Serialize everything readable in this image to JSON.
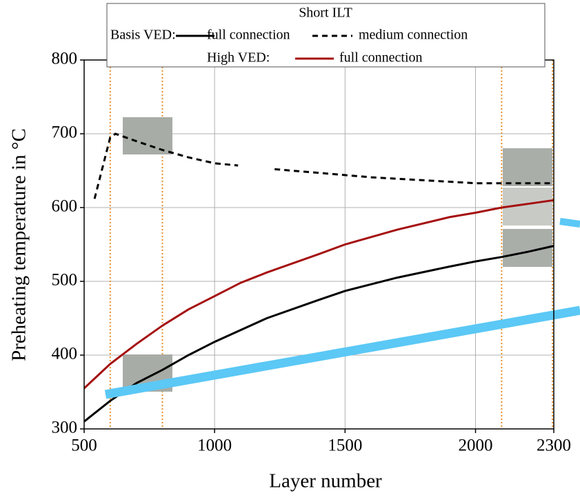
{
  "chart_data": {
    "type": "line",
    "x_label": "Layer number",
    "y_label": "Preheating temperature in °C",
    "legend_title": "Short ILT",
    "xlim": [
      500,
      2300
    ],
    "ylim": [
      300,
      800
    ],
    "xticks": [
      500,
      1000,
      1500,
      2000,
      2300
    ],
    "yticks": [
      300,
      400,
      500,
      600,
      700,
      800
    ],
    "grid": true,
    "vlines": [
      600,
      800,
      2100,
      2295
    ],
    "vline_color": "#e8902a",
    "series": [
      {
        "name": "full connection",
        "group": "Basis VED:",
        "color": "#000000",
        "dash": false,
        "x": [
          500,
          600,
          700,
          800,
          900,
          1000,
          1200,
          1400,
          1500,
          1700,
          1900,
          2000,
          2100,
          2200,
          2300
        ],
        "values": [
          310,
          338,
          362,
          380,
          400,
          418,
          450,
          475,
          487,
          505,
          520,
          527,
          533,
          540,
          548
        ]
      },
      {
        "name": "medium connection",
        "group": "Basis VED:",
        "color": "#000000",
        "dash": true,
        "x": [
          540,
          600,
          620,
          700,
          800,
          900,
          1000,
          1090,
          1160,
          1230,
          1400,
          1600,
          1800,
          2000,
          2300
        ],
        "values": [
          612,
          695,
          700,
          690,
          678,
          668,
          660,
          657,
          null,
          652,
          647,
          641,
          637,
          633,
          633
        ]
      },
      {
        "name": "full connection",
        "group": "High VED:",
        "color": "#a50f0f",
        "dash": false,
        "x": [
          500,
          600,
          700,
          800,
          900,
          1000,
          1100,
          1200,
          1400,
          1500,
          1700,
          1900,
          2000,
          2100,
          2200,
          2300
        ],
        "values": [
          355,
          388,
          415,
          440,
          462,
          480,
          498,
          512,
          537,
          550,
          570,
          587,
          593,
          600,
          605,
          610
        ]
      }
    ]
  }
}
